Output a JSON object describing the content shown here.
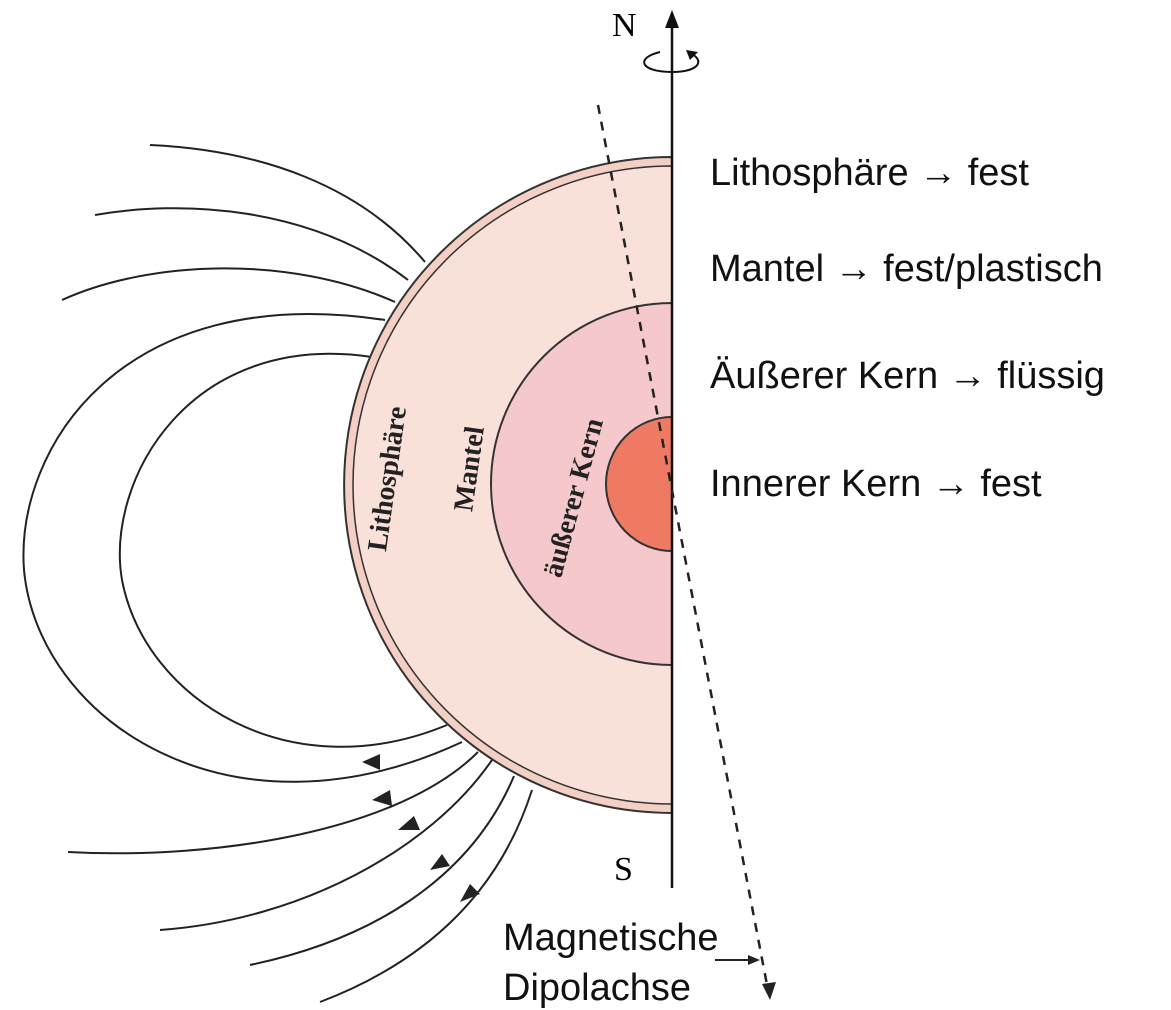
{
  "poles": {
    "north": "N",
    "south": "S"
  },
  "layers": [
    "Lithosphäre",
    "Mantel",
    "äußerer Kern"
  ],
  "states": [
    "Lithosphäre → fest",
    "Mantel → fest/plastisch",
    "Äußerer Kern  → flüssig",
    "Innerer Kern → fest"
  ],
  "dipole_axis": [
    "Magnetische",
    "Dipolachse"
  ]
}
